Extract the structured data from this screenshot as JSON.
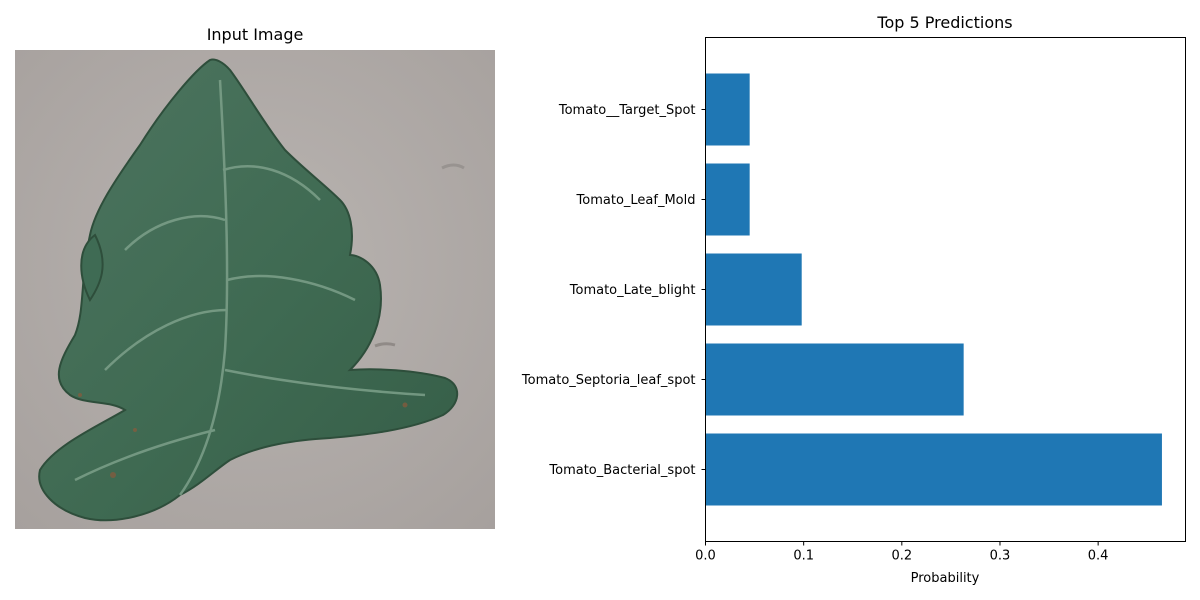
{
  "left_panel": {
    "title": "Input Image"
  },
  "chart_data": {
    "type": "bar",
    "orientation": "horizontal",
    "title": "Top 5 Predictions",
    "xlabel": "Probability",
    "ylabel": "",
    "categories": [
      "Tomato_Bacterial_spot",
      "Tomato_Septoria_leaf_spot",
      "Tomato_Late_blight",
      "Tomato_Leaf_Mold",
      "Tomato__Target_Spot"
    ],
    "values": [
      0.465,
      0.263,
      0.098,
      0.045,
      0.045
    ],
    "xlim": [
      0,
      0.489
    ],
    "xticks": [
      "0.0",
      "0.1",
      "0.2",
      "0.3",
      "0.4"
    ],
    "grid": false,
    "bar_color": "#1f77b4"
  }
}
